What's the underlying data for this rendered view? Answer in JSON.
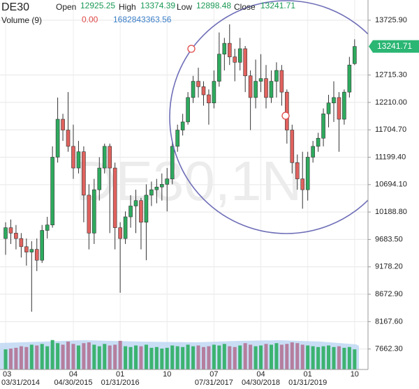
{
  "header": {
    "symbol": "DE30",
    "open_label": "Open",
    "open": "12925.25",
    "high_label": "High",
    "high": "13374.39",
    "low_label": "Low",
    "low": "12898.48",
    "close_label": "Close",
    "close": "13241.71",
    "volume_label": "Volume (9)",
    "volume_change": "0.00",
    "volume_value": "1682843363.56"
  },
  "chart_data": {
    "type": "candlestick",
    "watermark": "DE30,1N",
    "categories": [
      "03/31/2014",
      null,
      null,
      null,
      null,
      null,
      null,
      null,
      null,
      null,
      null,
      null,
      null,
      "04/30/2015",
      null,
      null,
      null,
      null,
      null,
      null,
      null,
      null,
      "01/31/2016",
      null,
      null,
      null,
      null,
      null,
      null,
      null,
      null,
      null,
      null,
      null,
      null,
      null,
      null,
      null,
      null,
      null,
      "07/31/2017",
      null,
      null,
      null,
      null,
      null,
      null,
      null,
      null,
      "04/30/2018",
      null,
      null,
      null,
      null,
      null,
      null,
      null,
      null,
      "01/31/2019",
      null,
      null,
      null,
      null,
      null,
      null,
      null,
      null,
      null
    ],
    "month_labels": [
      "03",
      null,
      null,
      null,
      null,
      null,
      null,
      null,
      null,
      null,
      null,
      null,
      null,
      "04",
      null,
      null,
      null,
      null,
      null,
      null,
      null,
      null,
      "01",
      null,
      null,
      null,
      null,
      null,
      null,
      null,
      null,
      "10",
      null,
      null,
      null,
      null,
      null,
      null,
      null,
      null,
      "07",
      null,
      null,
      null,
      null,
      null,
      null,
      null,
      null,
      "04",
      null,
      null,
      null,
      null,
      null,
      null,
      null,
      null,
      "01",
      null,
      null,
      null,
      null,
      null,
      null,
      null,
      null,
      "10"
    ],
    "open": [
      9700,
      9900,
      9800,
      9700,
      9550,
      9450,
      9500,
      9300,
      9850,
      9950,
      11200,
      11900,
      11700,
      11400,
      11000,
      11300,
      10500,
      9800,
      10600,
      11000,
      11400,
      11000,
      9900,
      9700,
      10100,
      10300,
      10400,
      10000,
      10500,
      10600,
      10650,
      10700,
      10800,
      11400,
      11700,
      11850,
      12300,
      12600,
      12500,
      12350,
      12200,
      12600,
      13100,
      13300,
      13050,
      12950,
      13200,
      12700,
      12300,
      12600,
      12650,
      12300,
      12600,
      12800,
      12400,
      11700,
      11100,
      10800,
      10600,
      11200,
      11400,
      11550,
      12000,
      12200,
      12300,
      11900,
      12400,
      12925.25
    ],
    "high": [
      10000,
      10050,
      9950,
      9800,
      9700,
      9650,
      9700,
      9950,
      10100,
      11400,
      12300,
      12000,
      12400,
      11800,
      11500,
      11400,
      10700,
      10800,
      11200,
      11450,
      11450,
      11100,
      10000,
      10200,
      10500,
      10600,
      10450,
      10700,
      10750,
      10800,
      10900,
      11000,
      11500,
      11800,
      12000,
      12400,
      12700,
      12850,
      12600,
      12450,
      12800,
      13500,
      13400,
      13650,
      13200,
      13400,
      13250,
      12800,
      13000,
      13100,
      12900,
      12800,
      12950,
      12900,
      12450,
      11800,
      11250,
      11300,
      11300,
      11500,
      11650,
      12100,
      12350,
      12600,
      12400,
      12450,
      13050,
      13374.39
    ],
    "low": [
      9400,
      9600,
      9500,
      9350,
      9200,
      8350,
      9100,
      9250,
      9700,
      9900,
      11100,
      11500,
      11300,
      10800,
      10900,
      10000,
      9500,
      9600,
      10400,
      10900,
      9800,
      9500,
      8700,
      9600,
      9900,
      9800,
      9500,
      9300,
      10300,
      10350,
      10400,
      10200,
      10700,
      11300,
      11600,
      11800,
      12200,
      12300,
      12150,
      11800,
      12100,
      12500,
      12800,
      12900,
      12600,
      12800,
      12400,
      11700,
      12100,
      12400,
      12100,
      12200,
      12300,
      12150,
      11450,
      10900,
      10600,
      10250,
      10400,
      11100,
      11300,
      11400,
      11750,
      11850,
      11300,
      11800,
      12300,
      12898.48
    ],
    "close": [
      9900,
      9800,
      9700,
      9550,
      9450,
      9500,
      9300,
      9850,
      9950,
      11200,
      11900,
      11700,
      11400,
      11000,
      11300,
      10500,
      9800,
      10600,
      11000,
      11400,
      11000,
      9900,
      9700,
      10100,
      10300,
      10400,
      10000,
      10500,
      10600,
      10650,
      10700,
      10800,
      11400,
      11700,
      11850,
      12300,
      12600,
      12500,
      12350,
      12200,
      12600,
      13100,
      13300,
      13050,
      12950,
      13200,
      12700,
      12300,
      12600,
      12650,
      12300,
      12600,
      12800,
      12400,
      11700,
      11100,
      10800,
      10600,
      11200,
      11400,
      11550,
      12000,
      12200,
      12300,
      11900,
      12400,
      12900,
      13241.71
    ],
    "volume": [
      1300000000,
      1350000000,
      1400000000,
      1500000000,
      1450000000,
      1600000000,
      1550000000,
      1650000000,
      1500000000,
      1900000000,
      1700000000,
      1600000000,
      1800000000,
      1650000000,
      1550000000,
      1700000000,
      1750000000,
      1600000000,
      1500000000,
      1650000000,
      1550000000,
      1600000000,
      1850000000,
      1500000000,
      1450000000,
      1550000000,
      1500000000,
      1600000000,
      1400000000,
      1450000000,
      1350000000,
      1400000000,
      1550000000,
      1500000000,
      1450000000,
      1600000000,
      1500000000,
      1550000000,
      1450000000,
      1500000000,
      1600000000,
      1550000000,
      1650000000,
      1500000000,
      1450000000,
      1550000000,
      1700000000,
      1600000000,
      1500000000,
      1550000000,
      1650000000,
      1600000000,
      1700000000,
      1600000000,
      1650000000,
      1750000000,
      1700000000,
      1600000000,
      1550000000,
      1500000000,
      1450000000,
      1500000000,
      1550000000,
      1450000000,
      1500000000,
      1400000000,
      1450000000,
      1300000000
    ],
    "ylim": [
      7285,
      14098.7
    ],
    "yticks": [
      {
        "value": 13725.9,
        "label": "13725.90"
      },
      {
        "value": 12715.3,
        "label": "12715.30"
      },
      {
        "value": 12210,
        "label": "12210.00"
      },
      {
        "value": 11704.7,
        "label": "11704.70"
      },
      {
        "value": 11199.4,
        "label": "11199.40"
      },
      {
        "value": 10694.1,
        "label": "10694.10"
      },
      {
        "value": 10188.8,
        "label": "10188.80"
      },
      {
        "value": 9683.5,
        "label": "9683.50"
      },
      {
        "value": 9178.2,
        "label": "9178.20"
      },
      {
        "value": 8672.9,
        "label": "8672.90"
      },
      {
        "value": 8167.6,
        "label": "8167.60"
      },
      {
        "value": 7662.3,
        "label": "7662.30"
      }
    ],
    "volume_lim": [
      0,
      4500000000
    ],
    "up_color": "#2eaa5e",
    "down_color": "#e0625e",
    "volume_up_color": "#3cb371",
    "volume_down_color": "#b57e9e",
    "grid": true
  }
}
